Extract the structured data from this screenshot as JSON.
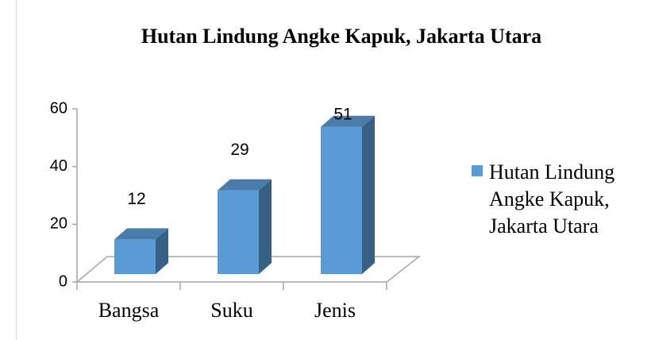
{
  "chart_data": {
    "type": "bar3d",
    "title": "Hutan Lindung Angke Kapuk, Jakarta Utara",
    "categories": [
      "Bangsa",
      "Suku",
      "Jenis"
    ],
    "series": [
      {
        "name": "Hutan Lindung Angke Kapuk, Jakarta Utara",
        "color": "#5b9bd5",
        "values": [
          12,
          29,
          51
        ]
      }
    ],
    "ylim": [
      0,
      60
    ],
    "yticks": [
      0,
      20,
      40,
      60
    ],
    "legend": "right"
  }
}
